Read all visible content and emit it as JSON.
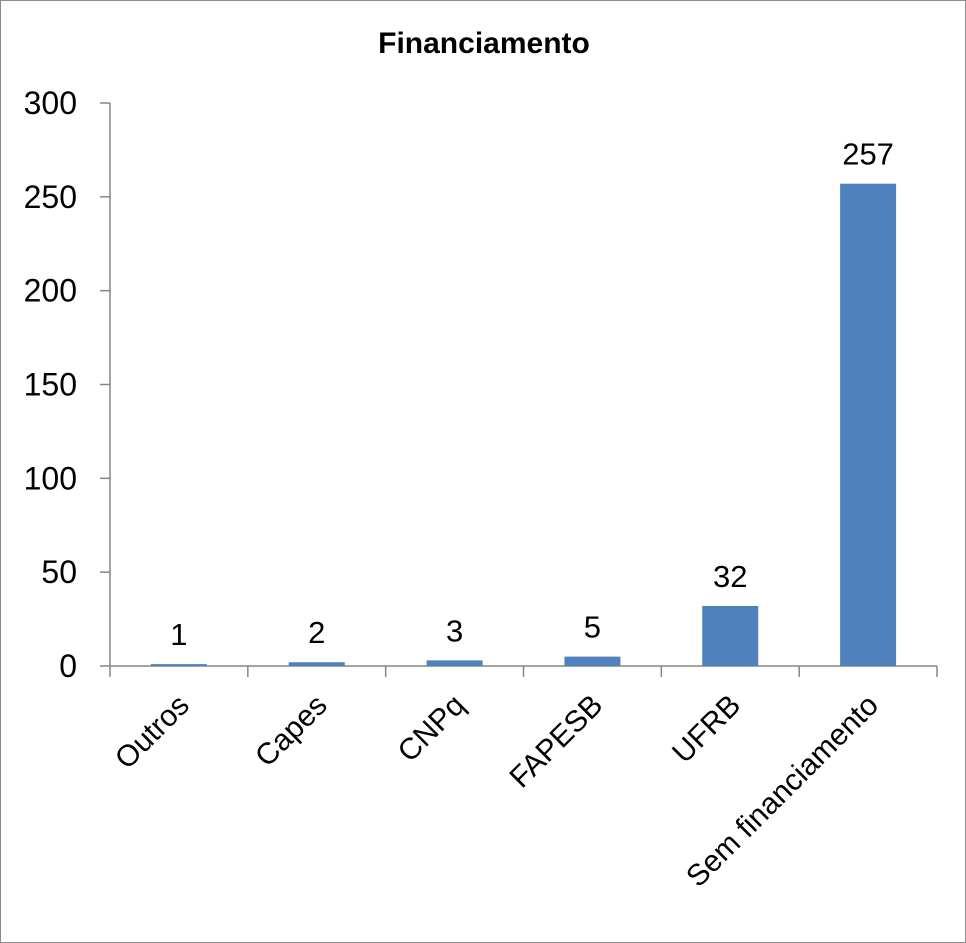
{
  "chart_data": {
    "type": "bar",
    "title": "Financiamento",
    "categories": [
      "Outros",
      "Capes",
      "CNPq",
      "FAPESB",
      "UFRB",
      "Sem financiamento"
    ],
    "values": [
      1,
      2,
      3,
      5,
      32,
      257
    ],
    "data_labels": [
      "1",
      "2",
      "3",
      "5",
      "32",
      "257"
    ],
    "ylim": [
      0,
      300
    ],
    "yticks": [
      0,
      50,
      100,
      150,
      200,
      250,
      300
    ],
    "ytick_labels": [
      "0",
      "50",
      "100",
      "150",
      "200",
      "250",
      "300"
    ],
    "xlabel": "",
    "ylabel": "",
    "grid": false,
    "legend": "none",
    "bar_color": "#4f81bd",
    "axis_color": "#868686"
  }
}
